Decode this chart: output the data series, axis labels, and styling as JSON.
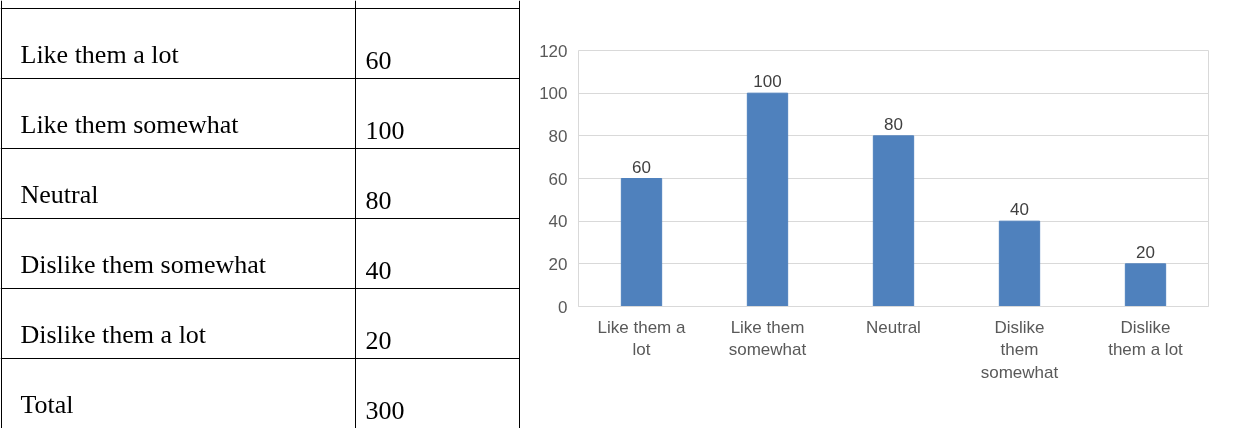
{
  "chart_data": [
    {
      "type": "other",
      "categories": [
        "Like them a lot",
        "Like them somewhat",
        "Neutral",
        "Dislike them somewhat",
        "Dislike them a lot",
        "Total"
      ],
      "values": [
        60,
        100,
        80,
        40,
        20,
        300
      ],
      "data_labels": true
    },
    {
      "type": "bar",
      "categories": [
        "Like them a lot",
        "Like them somewhat",
        "Neutral",
        "Dislike them somewhat",
        "Dislike them a lot"
      ],
      "values": [
        60,
        100,
        80,
        40,
        20
      ],
      "color": "#4f81bd",
      "ylim": [
        0,
        120
      ],
      "yticks": [
        0,
        20,
        40,
        60,
        80,
        100,
        120
      ],
      "grid": "y",
      "data_labels": true
    }
  ]
}
